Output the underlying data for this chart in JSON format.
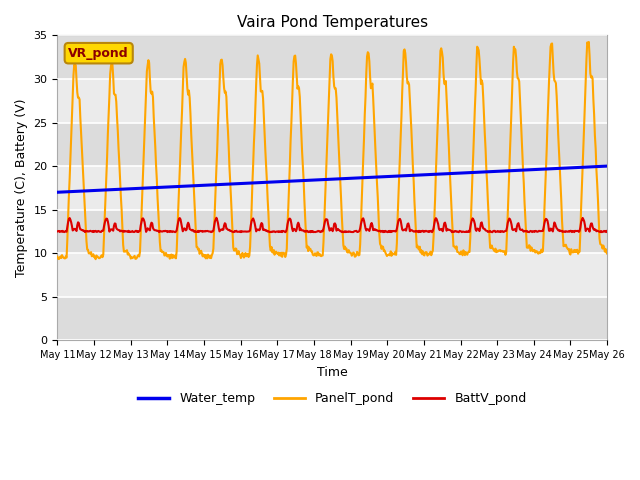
{
  "title": "Vaira Pond Temperatures",
  "xlabel": "Time",
  "ylabel": "Temperature (C), Battery (V)",
  "ylim": [
    0,
    35
  ],
  "yticks": [
    0,
    5,
    10,
    15,
    20,
    25,
    30,
    35
  ],
  "x_tick_labels": [
    "May 11",
    "May 12",
    "May 13",
    "May 14",
    "May 15",
    "May 16",
    "May 17",
    "May 18",
    "May 19",
    "May 20",
    "May 21",
    "May 22",
    "May 23",
    "May 24",
    "May 25",
    "May 26"
  ],
  "annotation_text": "VR_pond",
  "annotation_box_color": "#FFD700",
  "annotation_text_color": "#8B0000",
  "annotation_edge_color": "#B8860B",
  "water_temp_color": "#0000EE",
  "panel_temp_color": "#FFA500",
  "batt_color": "#DD0000",
  "plot_bg_color": "#EBEBEB",
  "grid_color": "#FFFFFF",
  "legend_labels": [
    "Water_temp",
    "PanelT_pond",
    "BattV_pond"
  ],
  "water_temp_lw": 2.2,
  "panel_temp_lw": 1.5,
  "batt_lw": 1.5,
  "title_fontsize": 11,
  "axis_fontsize": 9,
  "tick_fontsize": 8,
  "legend_fontsize": 9
}
